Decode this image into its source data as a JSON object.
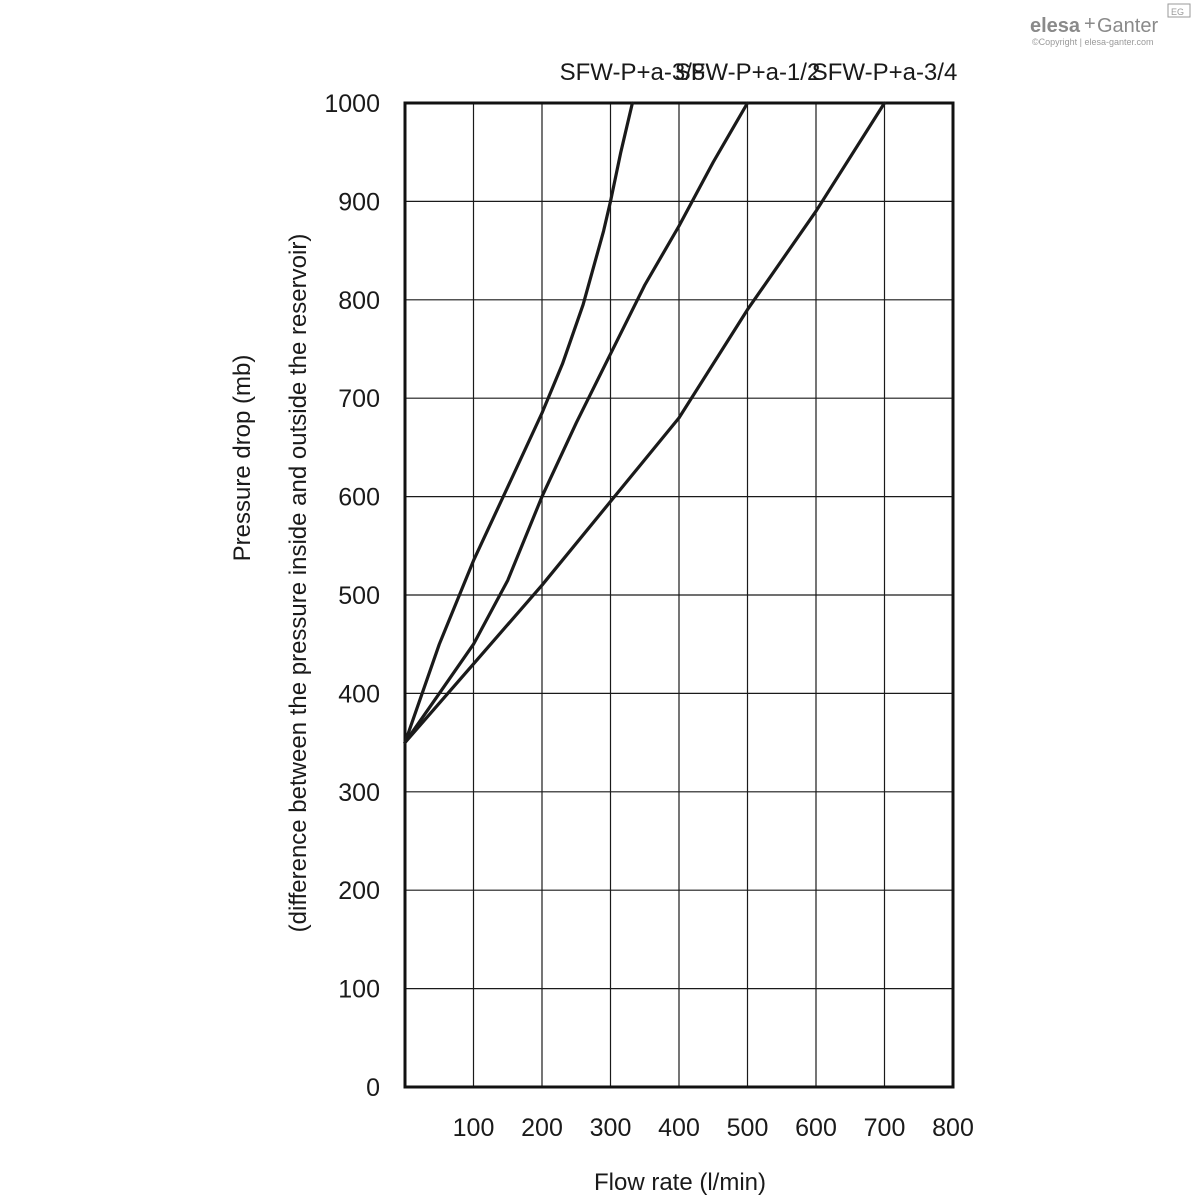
{
  "logo": {
    "brand_left": "elesa",
    "brand_plus": "+",
    "brand_right": "Ganter",
    "badge": "EG",
    "copyright": "©Copyright | elesa-ganter.com"
  },
  "chart_data": {
    "type": "line",
    "xlabel": "Flow rate (l/min)",
    "ylabel_line1": "Pressure drop (mb)",
    "ylabel_line2": "(difference between the pressure inside and outside the reservoir)",
    "xlim": [
      0,
      800
    ],
    "ylim": [
      0,
      1000
    ],
    "x_ticks": [
      100,
      200,
      300,
      400,
      500,
      600,
      700,
      800
    ],
    "y_ticks": [
      0,
      100,
      200,
      300,
      400,
      500,
      600,
      700,
      800,
      900,
      1000
    ],
    "grid": true,
    "series": [
      {
        "name": "SFW-P+a-3/8",
        "points": [
          [
            0,
            350
          ],
          [
            50,
            450
          ],
          [
            100,
            535
          ],
          [
            150,
            610
          ],
          [
            200,
            685
          ],
          [
            230,
            735
          ],
          [
            260,
            795
          ],
          [
            290,
            870
          ],
          [
            300,
            900
          ],
          [
            315,
            950
          ],
          [
            332,
            1000
          ]
        ]
      },
      {
        "name": "SFW-P+a-1/2",
        "points": [
          [
            0,
            350
          ],
          [
            50,
            400
          ],
          [
            100,
            450
          ],
          [
            150,
            515
          ],
          [
            200,
            600
          ],
          [
            250,
            675
          ],
          [
            300,
            745
          ],
          [
            350,
            815
          ],
          [
            400,
            875
          ],
          [
            450,
            940
          ],
          [
            500,
            1000
          ]
        ]
      },
      {
        "name": "SFW-P+a-3/4",
        "points": [
          [
            0,
            350
          ],
          [
            100,
            430
          ],
          [
            200,
            510
          ],
          [
            300,
            595
          ],
          [
            400,
            680
          ],
          [
            500,
            790
          ],
          [
            600,
            890
          ],
          [
            700,
            1000
          ]
        ]
      }
    ]
  }
}
